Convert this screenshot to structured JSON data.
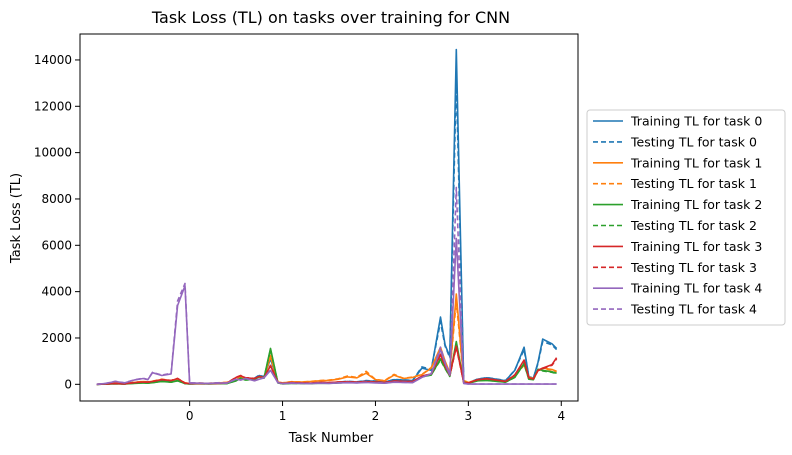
{
  "chart_data": {
    "type": "line",
    "title": "Task Loss (TL) on tasks over training for CNN",
    "xlabel": "Task Number",
    "ylabel": "Task Loss (TL)",
    "xlim": [
      -1.18,
      4.18
    ],
    "ylim": [
      -720,
      15120
    ],
    "xticks": [
      0,
      1,
      2,
      3,
      4
    ],
    "yticks": [
      0,
      2000,
      4000,
      6000,
      8000,
      10000,
      12000,
      14000
    ],
    "grid": false,
    "legend_position": "center-right, outside plot",
    "x": [
      -1.0,
      -0.9,
      -0.8,
      -0.7,
      -0.6,
      -0.5,
      -0.45,
      -0.4,
      -0.3,
      -0.2,
      -0.13,
      -0.05,
      0.0,
      0.1,
      0.2,
      0.3,
      0.4,
      0.5,
      0.55,
      0.6,
      0.7,
      0.75,
      0.8,
      0.87,
      0.95,
      1.0,
      1.1,
      1.2,
      1.3,
      1.4,
      1.5,
      1.6,
      1.7,
      1.8,
      1.9,
      2.0,
      2.1,
      2.2,
      2.3,
      2.4,
      2.5,
      2.6,
      2.7,
      2.75,
      2.8,
      2.87,
      2.95,
      3.0,
      3.1,
      3.2,
      3.3,
      3.4,
      3.5,
      3.6,
      3.65,
      3.7,
      3.75,
      3.8,
      3.9,
      3.95
    ],
    "series": [
      {
        "name": "Training TL for task 0",
        "color": "#1f77b4",
        "dash": false,
        "values": [
          0,
          10,
          40,
          15,
          60,
          90,
          80,
          110,
          150,
          120,
          200,
          40,
          20,
          30,
          25,
          30,
          40,
          160,
          250,
          200,
          260,
          380,
          320,
          1100,
          80,
          30,
          60,
          50,
          40,
          70,
          60,
          90,
          120,
          100,
          150,
          130,
          90,
          200,
          180,
          160,
          700,
          600,
          2900,
          1700,
          1200,
          14450,
          100,
          60,
          220,
          280,
          220,
          150,
          600,
          1600,
          320,
          260,
          950,
          1950,
          1750,
          1550
        ]
      },
      {
        "name": "Testing TL for task 0",
        "color": "#1f77b4",
        "dash": true,
        "values": [
          0,
          12,
          45,
          18,
          65,
          95,
          85,
          115,
          160,
          130,
          210,
          45,
          25,
          35,
          30,
          35,
          45,
          170,
          260,
          210,
          270,
          400,
          330,
          1150,
          90,
          35,
          65,
          55,
          45,
          75,
          65,
          95,
          130,
          110,
          160,
          140,
          95,
          210,
          190,
          170,
          750,
          650,
          2700,
          1650,
          1150,
          13200,
          110,
          70,
          230,
          290,
          230,
          160,
          620,
          1500,
          330,
          270,
          900,
          1850,
          1700,
          1500
        ]
      },
      {
        "name": "Training TL for task 1",
        "color": "#ff7f0e",
        "dash": false,
        "values": [
          0,
          20,
          50,
          30,
          80,
          120,
          100,
          130,
          210,
          160,
          230,
          60,
          30,
          50,
          40,
          60,
          80,
          200,
          320,
          250,
          230,
          320,
          280,
          1200,
          90,
          60,
          110,
          100,
          120,
          150,
          170,
          220,
          320,
          280,
          480,
          200,
          150,
          400,
          250,
          300,
          420,
          700,
          1600,
          1000,
          500,
          3900,
          150,
          80,
          180,
          220,
          160,
          120,
          380,
          850,
          300,
          240,
          600,
          700,
          640,
          560
        ]
      },
      {
        "name": "Testing TL for task 1",
        "color": "#ff7f0e",
        "dash": true,
        "values": [
          0,
          22,
          55,
          32,
          85,
          125,
          105,
          135,
          220,
          170,
          240,
          65,
          35,
          55,
          45,
          65,
          85,
          210,
          340,
          260,
          240,
          330,
          290,
          1250,
          95,
          65,
          115,
          105,
          125,
          160,
          180,
          240,
          360,
          300,
          560,
          210,
          160,
          430,
          260,
          310,
          430,
          720,
          1500,
          950,
          480,
          3600,
          160,
          85,
          190,
          230,
          170,
          125,
          390,
          820,
          310,
          250,
          580,
          680,
          620,
          540
        ]
      },
      {
        "name": "Training TL for task 2",
        "color": "#2ca02c",
        "dash": false,
        "values": [
          0,
          10,
          20,
          15,
          40,
          60,
          50,
          70,
          120,
          90,
          150,
          30,
          20,
          25,
          20,
          25,
          30,
          150,
          260,
          180,
          220,
          320,
          270,
          1550,
          60,
          20,
          40,
          35,
          30,
          50,
          45,
          60,
          80,
          70,
          100,
          80,
          60,
          120,
          110,
          100,
          320,
          400,
          1100,
          700,
          350,
          1850,
          90,
          50,
          150,
          170,
          130,
          90,
          300,
          900,
          220,
          200,
          650,
          600,
          540,
          480
        ]
      },
      {
        "name": "Testing TL for task 2",
        "color": "#2ca02c",
        "dash": true,
        "values": [
          0,
          12,
          22,
          17,
          42,
          62,
          52,
          72,
          125,
          92,
          155,
          32,
          22,
          27,
          22,
          27,
          32,
          155,
          270,
          185,
          225,
          330,
          275,
          1500,
          62,
          22,
          42,
          37,
          32,
          52,
          47,
          62,
          82,
          72,
          105,
          82,
          62,
          125,
          112,
          102,
          330,
          410,
          1050,
          680,
          340,
          1700,
          92,
          52,
          155,
          175,
          135,
          92,
          305,
          880,
          225,
          205,
          630,
          580,
          520,
          460
        ]
      },
      {
        "name": "Training TL for task 3",
        "color": "#d62728",
        "dash": false,
        "values": [
          0,
          15,
          30,
          20,
          70,
          100,
          90,
          120,
          200,
          160,
          250,
          50,
          30,
          40,
          30,
          40,
          50,
          300,
          370,
          280,
          250,
          340,
          280,
          800,
          80,
          40,
          70,
          60,
          50,
          80,
          70,
          100,
          110,
          90,
          120,
          100,
          80,
          140,
          130,
          120,
          350,
          450,
          1300,
          800,
          400,
          1650,
          80,
          60,
          200,
          240,
          180,
          120,
          400,
          1050,
          280,
          230,
          600,
          700,
          850,
          1150
        ]
      },
      {
        "name": "Testing TL for task 3",
        "color": "#d62728",
        "dash": true,
        "values": [
          0,
          17,
          32,
          22,
          72,
          102,
          92,
          125,
          205,
          165,
          255,
          52,
          32,
          42,
          32,
          42,
          52,
          305,
          380,
          285,
          255,
          345,
          285,
          820,
          82,
          42,
          72,
          62,
          52,
          82,
          72,
          102,
          112,
          92,
          125,
          102,
          82,
          145,
          132,
          122,
          355,
          455,
          1250,
          780,
          390,
          1600,
          82,
          62,
          205,
          245,
          185,
          125,
          405,
          1020,
          285,
          235,
          590,
          680,
          820,
          1100
        ]
      },
      {
        "name": "Training TL for task 4",
        "color": "#9467bd",
        "dash": false,
        "values": [
          0,
          40,
          120,
          60,
          180,
          250,
          200,
          500,
          380,
          450,
          3400,
          4250,
          60,
          50,
          40,
          60,
          50,
          220,
          180,
          250,
          150,
          220,
          280,
          600,
          70,
          30,
          50,
          40,
          30,
          50,
          40,
          60,
          70,
          60,
          80,
          60,
          50,
          90,
          80,
          70,
          300,
          450,
          1500,
          900,
          400,
          6300,
          40,
          10,
          10,
          10,
          10,
          10,
          10,
          10,
          10,
          10,
          10,
          10,
          10,
          10
        ]
      },
      {
        "name": "Testing TL for task 4",
        "color": "#9467bd",
        "dash": true,
        "values": [
          0,
          45,
          130,
          65,
          190,
          260,
          210,
          520,
          400,
          470,
          3600,
          4350,
          65,
          55,
          45,
          65,
          55,
          230,
          190,
          260,
          160,
          230,
          290,
          620,
          75,
          35,
          55,
          45,
          35,
          55,
          45,
          65,
          75,
          65,
          85,
          65,
          55,
          95,
          85,
          75,
          310,
          460,
          1600,
          950,
          420,
          8500,
          45,
          12,
          12,
          12,
          12,
          12,
          12,
          12,
          12,
          12,
          12,
          12,
          12,
          12
        ]
      }
    ]
  }
}
